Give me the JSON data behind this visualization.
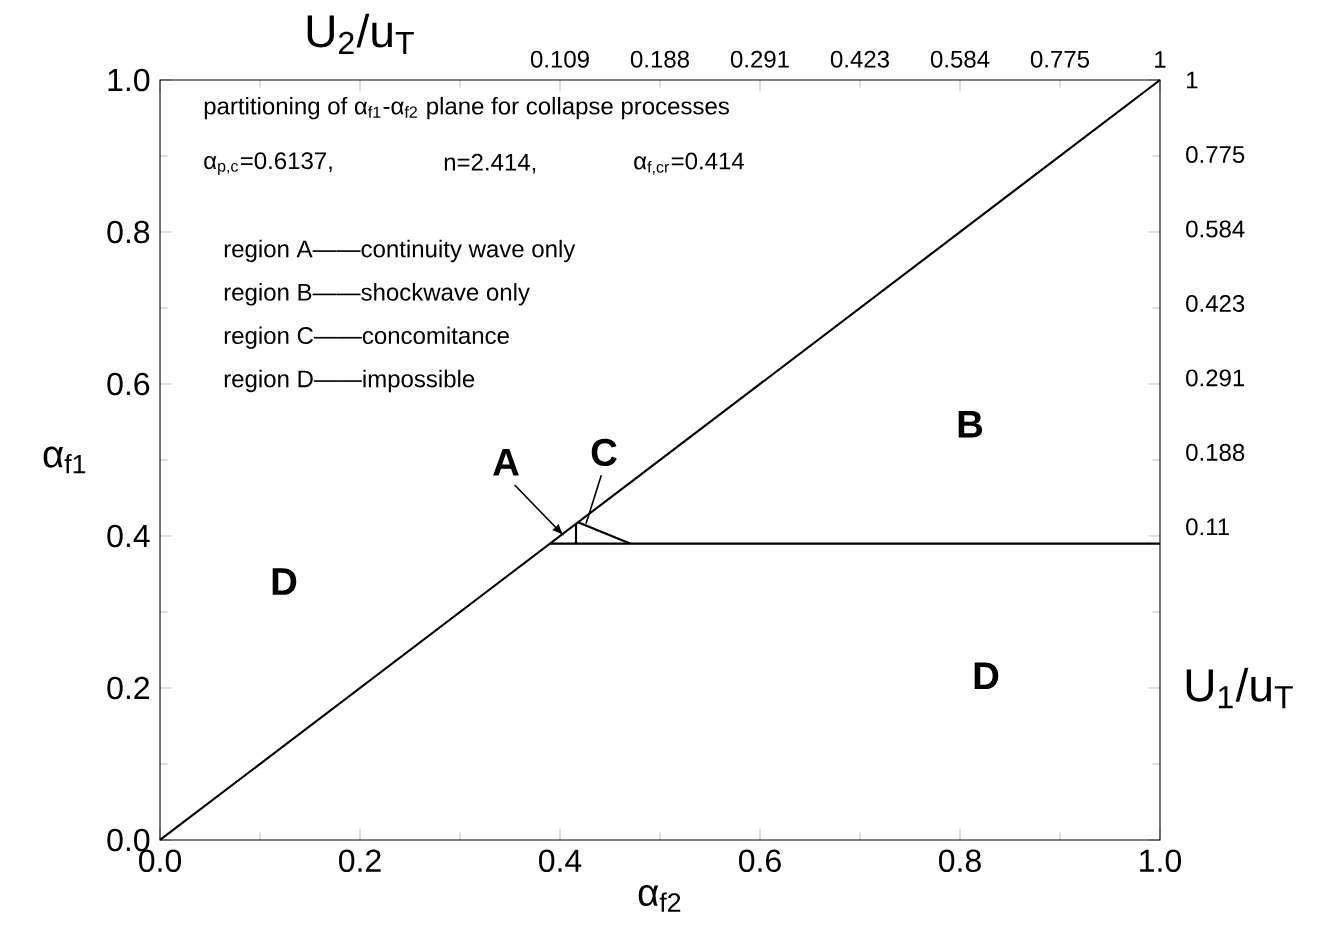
{
  "chart_data": {
    "type": "line",
    "xlabel": "α$_{f2}$",
    "ylabel": "α$_{f1}$",
    "xlim": [
      0,
      1
    ],
    "ylim": [
      0,
      1
    ],
    "xticks": [
      {
        "value": 0,
        "label": "0.0"
      },
      {
        "value": 0.2,
        "label": "0.2"
      },
      {
        "value": 0.4,
        "label": "0.4"
      },
      {
        "value": 0.6,
        "label": "0.6"
      },
      {
        "value": 0.8,
        "label": "0.8"
      },
      {
        "value": 1,
        "label": "1.0"
      }
    ],
    "yticks": [
      {
        "value": 0,
        "label": "0.0"
      },
      {
        "value": 0.2,
        "label": "0.2"
      },
      {
        "value": 0.4,
        "label": "0.4"
      },
      {
        "value": 0.6,
        "label": "0.6"
      },
      {
        "value": 0.8,
        "label": "0.8"
      },
      {
        "value": 1,
        "label": "1.0"
      }
    ],
    "marker": "none",
    "line_style": "solid",
    "series": [
      {
        "color": "#000000",
        "x": [
          0,
          1
        ],
        "values": [
          0,
          1
        ]
      },
      {
        "color": "#000000",
        "x": [
          0.39,
          1
        ],
        "values": [
          0.39,
          0.39
        ]
      },
      {
        "color": "#000000",
        "x": [
          0.416,
          0.416
        ],
        "values": [
          0.39,
          0.416
        ]
      },
      {
        "color": "#000000",
        "x": [
          0.418,
          0.47
        ],
        "values": [
          0.418,
          0.39
        ]
      }
    ],
    "annotations": [
      "partitioning  of  α$_{f1}$-α$_{f2}$  plane  for  collapse processes",
      "α$_{p,c}$=0.6137,",
      "n=2.414,",
      "α$_{f,cr}$=0.414",
      "region A——continuity wave only",
      "region B——shockwave only",
      "region C——concomitance",
      "region D——impossible",
      {
        "text": "A",
        "x": 0.404,
        "y": 0.4
      },
      {
        "text": "C",
        "x": 0.426,
        "y": 0.416
      },
      "B",
      "D",
      "D",
      "U$_{2}$/u$_{T}$",
      "U$_{1}$/u$_{T}$",
      "0.109",
      "0.188",
      "0.291",
      "0.423",
      "0.584",
      "0.775",
      "1",
      "1",
      "0.775",
      "0.584",
      "0.423",
      "0.291",
      "0.188",
      "0.11"
    ]
  }
}
